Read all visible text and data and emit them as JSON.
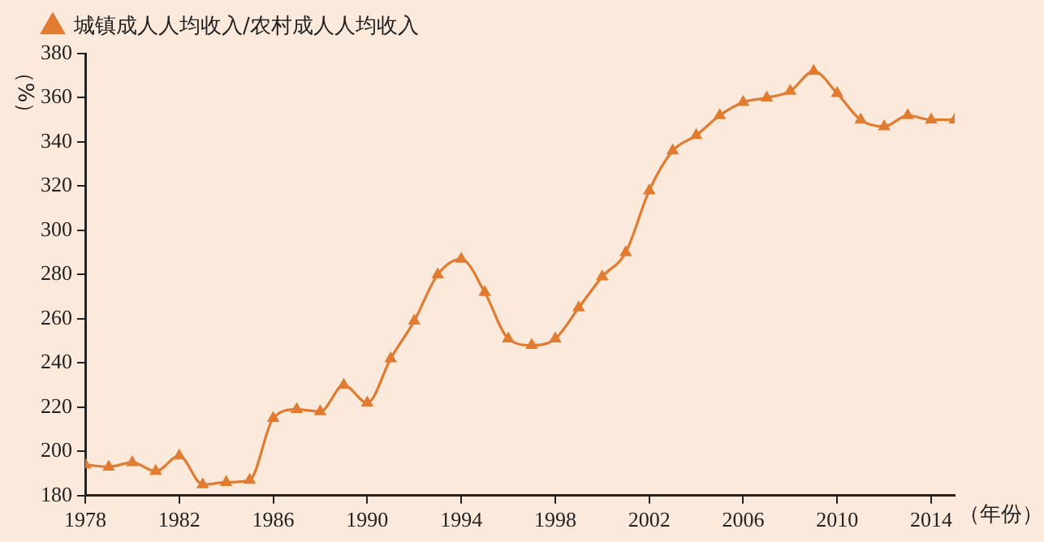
{
  "chart_data": {
    "type": "line",
    "xlabel": "（年份）",
    "ylabel": "（%）",
    "x": [
      1978,
      1979,
      1980,
      1981,
      1982,
      1983,
      1984,
      1985,
      1986,
      1987,
      1988,
      1989,
      1990,
      1991,
      1992,
      1993,
      1994,
      1995,
      1996,
      1997,
      1998,
      1999,
      2000,
      2001,
      2002,
      2003,
      2004,
      2005,
      2006,
      2007,
      2008,
      2009,
      2010,
      2011,
      2012,
      2013,
      2014,
      2015
    ],
    "series": [
      {
        "name": "城镇成人人均收入/农村成人人均收入",
        "color": "#e07b30",
        "values": [
          194,
          193,
          195,
          191,
          198,
          185,
          186,
          187,
          215,
          219,
          218,
          230,
          222,
          242,
          259,
          280,
          287,
          272,
          251,
          248,
          251,
          265,
          279,
          290,
          318,
          336,
          343,
          352,
          358,
          360,
          363,
          372,
          362,
          350,
          347,
          352,
          350,
          350
        ]
      }
    ],
    "xlim": [
      1978,
      2015
    ],
    "xticks": [
      1978,
      1982,
      1986,
      1990,
      1994,
      1998,
      2002,
      2006,
      2010,
      2014
    ],
    "ylim": [
      180,
      380
    ],
    "yticks": [
      180,
      200,
      220,
      240,
      260,
      280,
      300,
      320,
      340,
      360,
      380
    ],
    "legend": "top left",
    "marker": "triangle",
    "line_style": "solid",
    "grid": false
  }
}
